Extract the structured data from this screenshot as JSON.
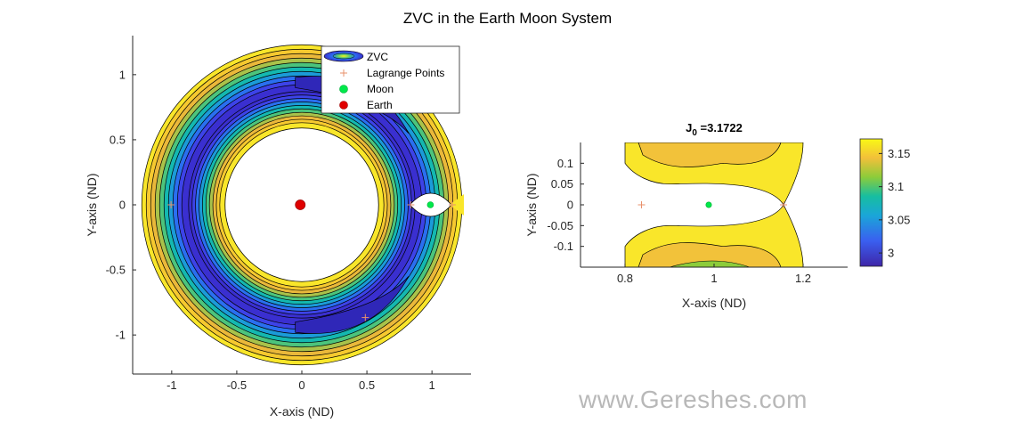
{
  "figure": {
    "title": "ZVC in the Earth Moon System",
    "watermark": "www.Gereshes.com"
  },
  "colors": {
    "levels": [
      "#3a2fd0",
      "#3d43e8",
      "#2a6ff0",
      "#1b9bd8",
      "#14b8b0",
      "#4cc47c",
      "#a9c24a",
      "#eab83a",
      "#f6c92f",
      "#f9e62a"
    ],
    "lagrange": "#e8906b",
    "moon": "#00e84a",
    "earth": "#e00000",
    "contour": "#000000"
  },
  "chart_data": [
    {
      "type": "contour",
      "title": "",
      "xlabel": "X-axis (ND)",
      "ylabel": "Y-axis (ND)",
      "xlim": [
        -1.3,
        1.3
      ],
      "ylim": [
        -1.3,
        1.3
      ],
      "xticks": [
        -1,
        -0.5,
        0,
        0.5,
        1
      ],
      "xtick_labels": [
        "-1",
        "-0.5",
        "0",
        "0.5",
        "1"
      ],
      "yticks": [
        -1,
        -0.5,
        0,
        0.5,
        1
      ],
      "ytick_labels": [
        "-1",
        "-0.5",
        "0",
        "0.5",
        "1"
      ],
      "ring": {
        "inner_radius": 0.59,
        "outer_radius": 1.23,
        "peak_radius": 0.87,
        "gap_x_from": 0.83,
        "gap_x_to": 1.15
      },
      "contour_levels": [
        2.99,
        3.0,
        3.01,
        3.02,
        3.03,
        3.05,
        3.07,
        3.09,
        3.11,
        3.13,
        3.15,
        3.17
      ],
      "legend": {
        "position": "top-right",
        "entries": [
          "ZVC",
          "Lagrange Points",
          "Moon",
          "Earth"
        ]
      },
      "series": [
        {
          "name": "Lagrange Points",
          "x": [
            0.837,
            1.156,
            -1.005,
            0.488,
            0.488
          ],
          "y": [
            0,
            0,
            0,
            0.866,
            -0.866
          ]
        },
        {
          "name": "Moon",
          "x": [
            0.988
          ],
          "y": [
            0
          ]
        },
        {
          "name": "Earth",
          "x": [
            -0.012
          ],
          "y": [
            0
          ]
        }
      ]
    },
    {
      "type": "contour",
      "title": "J",
      "title_subscript": "0",
      "title_suffix": " =3.1722",
      "xlabel": "X-axis (ND)",
      "ylabel": "Y-axis (ND)",
      "xlim": [
        0.7,
        1.3
      ],
      "ylim": [
        -0.15,
        0.15
      ],
      "xticks": [
        0.8,
        1,
        1.2
      ],
      "xtick_labels": [
        "0.8",
        "1",
        "1.2"
      ],
      "yticks": [
        -0.1,
        -0.05,
        0,
        0.05,
        0.1
      ],
      "ytick_labels": [
        "-0.1",
        "-0.05",
        "0",
        "0.05",
        "0.1"
      ],
      "series": [
        {
          "name": "Lagrange Points",
          "x": [
            0.837,
            1.156
          ],
          "y": [
            0,
            0
          ]
        },
        {
          "name": "Moon",
          "x": [
            0.988
          ],
          "y": [
            0
          ]
        }
      ],
      "colorbar": {
        "limits": [
          2.98,
          3.172
        ],
        "ticks": [
          3,
          3.05,
          3.1,
          3.15
        ],
        "tick_labels": [
          "3",
          "3.05",
          "3.1",
          "3.15"
        ]
      }
    }
  ]
}
